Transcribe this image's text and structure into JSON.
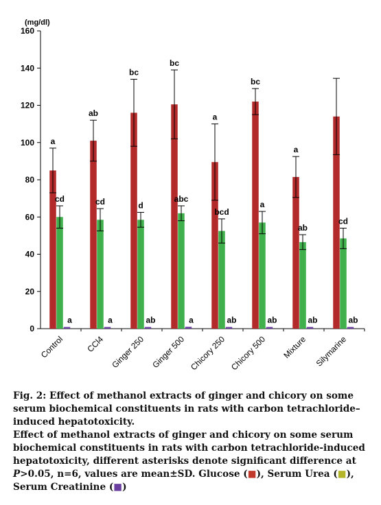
{
  "chart_data": {
    "type": "bar",
    "unit_label": "(mg/dl)",
    "categories": [
      "Control",
      "CCl4",
      "Ginger 250",
      "Ginger 500",
      "Chicory 250",
      "Chicory 500",
      "Mixture",
      "Silymarine"
    ],
    "ylim": [
      0,
      160
    ],
    "yticks": [
      0,
      20,
      40,
      60,
      80,
      100,
      120,
      140,
      160
    ],
    "series": [
      {
        "name": "Glucose",
        "color": "#b22a2a",
        "values": [
          85,
          101,
          116,
          120.5,
          89.5,
          122,
          81.5,
          114
        ],
        "errors": [
          12,
          11,
          18,
          18.5,
          20.5,
          7,
          11,
          20.5
        ],
        "labels": [
          "a",
          "ab",
          "bc",
          "bc",
          "a",
          "bc",
          "a",
          ""
        ]
      },
      {
        "name": "Serum Urea",
        "color": "#3fb04b",
        "values": [
          60,
          58.5,
          58.5,
          62,
          52.5,
          57,
          46.5,
          48.5
        ],
        "errors": [
          6,
          6,
          4,
          4,
          6.5,
          6,
          4,
          5.5
        ],
        "labels": [
          "cd",
          "cd",
          "d",
          "abc",
          "bcd",
          "a",
          "ab",
          "cd"
        ]
      },
      {
        "name": "Serum Creatinine",
        "color": "#6a3fa0",
        "values": [
          0.9,
          0.9,
          0.9,
          1.0,
          0.9,
          0.9,
          0.9,
          0.9
        ],
        "errors": [
          0,
          0,
          0,
          0,
          0,
          0,
          0,
          0
        ],
        "labels": [
          "a",
          "a",
          "ab",
          "a",
          "ab",
          "ab",
          "ab",
          "ab"
        ]
      }
    ]
  },
  "caption": {
    "title": "Fig. 2: Effect of methanol extracts of ginger and chicory on some serum biochemical constituents in rats with carbon tetrachloride–induced hepatotoxicity.",
    "body_start": "Effect of methanol extracts of ginger and chicory on some serum biochemical constituents in rats with carbon tetrachloride-induced hepatotoxicity, different asterisks denote significant difference at ",
    "p_symbol": "P",
    "body_rest": ">0.05, n=6, values are mean±SD. ",
    "legend": [
      {
        "label": "Glucose",
        "swatch_color": "#c0392b"
      },
      {
        "label": "Serum Urea",
        "swatch_color": "#b5b52a"
      },
      {
        "label": "Serum Creatinine",
        "swatch_color": "#6a3fa0"
      }
    ]
  }
}
